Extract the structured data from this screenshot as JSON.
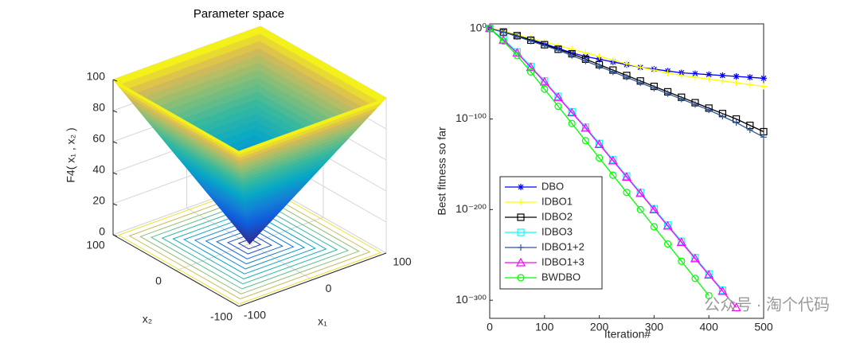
{
  "chart_data": [
    {
      "type": "surface",
      "title": "Parameter space",
      "xlabel": "x₁",
      "ylabel": "x₂",
      "zlabel": "F4( x₁ , x₂ )",
      "xlim": [
        -100,
        100
      ],
      "ylim": [
        -100,
        100
      ],
      "zlim": [
        0,
        100
      ],
      "xticks": [
        -100,
        0,
        100
      ],
      "yticks": [
        -100,
        0,
        100
      ],
      "zticks": [
        0,
        20,
        40,
        60,
        80,
        100
      ],
      "grid": true,
      "colormap": "parula"
    },
    {
      "type": "line",
      "xlabel": "Iteration#",
      "ylabel": "Best fitness so far",
      "x": [
        0,
        25,
        50,
        75,
        100,
        125,
        150,
        175,
        200,
        225,
        250,
        275,
        300,
        325,
        350,
        375,
        400,
        425,
        450,
        475,
        500
      ],
      "xlim": [
        0,
        500
      ],
      "xticks": [
        0,
        100,
        200,
        300,
        400,
        500
      ],
      "ylim": [
        1e-320,
        100000.0
      ],
      "yscale": "log",
      "yticks": [
        {
          "value": 1,
          "label": "10⁰"
        },
        {
          "value": 1e-100,
          "label": "10⁻¹⁰⁰"
        },
        {
          "value": 1e-200,
          "label": "10⁻²⁰⁰"
        },
        {
          "value": 1e-300,
          "label": "10⁻³⁰⁰"
        }
      ],
      "legend": "lower left",
      "series": [
        {
          "name": "DBO",
          "color": "#0000ff",
          "marker": "*",
          "values": [
            1,
            0.001,
            1e-08,
            1e-12,
            1e-17,
            1e-22,
            1e-27,
            1e-31,
            1e-34,
            1e-37,
            1e-40,
            1e-43,
            1e-45,
            1e-47,
            1e-49,
            1e-50,
            1e-51,
            1e-52,
            1e-53,
            1e-54,
            1e-55
          ]
        },
        {
          "name": "IDBO1",
          "color": "#ffff00",
          "marker": "+",
          "values": [
            1,
            0.001,
            1e-07,
            1e-11,
            1e-15,
            1e-19,
            1e-23,
            1e-27,
            1e-31,
            1e-35,
            1e-39,
            1e-43,
            1e-46,
            1e-49,
            1e-52,
            1e-54,
            1e-56,
            1e-58,
            1e-60,
            1e-62,
            1e-64
          ]
        },
        {
          "name": "IDBO2",
          "color": "#000000",
          "marker": "s",
          "values": [
            1,
            0.0001,
            1e-08,
            1e-13,
            1e-18,
            1e-23,
            1e-28,
            1e-34,
            1e-40,
            1e-46,
            1e-52,
            1e-58,
            1e-64,
            1e-70,
            1e-76,
            1e-82,
            1e-88,
            1e-94,
            1e-100,
            1e-107,
            1e-114
          ]
        },
        {
          "name": "IDBO3",
          "color": "#00ffff",
          "marker": "s",
          "values": [
            1,
            1e-12,
            1e-26,
            1e-42,
            1e-58,
            1e-75,
            1e-92,
            1e-109,
            1e-127,
            1e-145,
            1e-163,
            1e-181,
            1e-199,
            1e-217,
            1e-235,
            1e-253,
            1e-271,
            1e-289,
            null,
            null,
            null
          ]
        },
        {
          "name": "IDBO1+2",
          "color": "#2f5597",
          "marker": "+",
          "values": [
            1,
            0.0001,
            1e-09,
            1e-14,
            1e-19,
            1e-24,
            1e-30,
            1e-36,
            1e-42,
            1e-48,
            1e-54,
            1e-60,
            1e-66,
            1e-72,
            1e-78,
            1e-84,
            1e-90,
            1e-97,
            1e-104,
            1e-112,
            1e-120
          ]
        },
        {
          "name": "IDBO1+3",
          "color": "#ff00ff",
          "marker": "^",
          "values": [
            1,
            1e-13,
            1e-27,
            1e-43,
            1e-59,
            1e-76,
            1e-93,
            1e-110,
            1e-128,
            1e-146,
            1e-164,
            1e-182,
            1e-200,
            1e-218,
            1e-236,
            1e-254,
            1e-272,
            1e-290,
            1e-308,
            null,
            null
          ]
        },
        {
          "name": "BWDBO",
          "color": "#00ff00",
          "marker": "o",
          "values": [
            1,
            1e-14,
            1e-30,
            1e-48,
            1e-67,
            1e-86,
            1e-105,
            1e-124,
            1e-143,
            1e-162,
            1e-181,
            1e-200,
            1e-219,
            1e-238,
            1e-257,
            1e-276,
            1e-295,
            null,
            null,
            null,
            null
          ]
        }
      ]
    }
  ],
  "watermark": "公众号 · 淘个代码"
}
